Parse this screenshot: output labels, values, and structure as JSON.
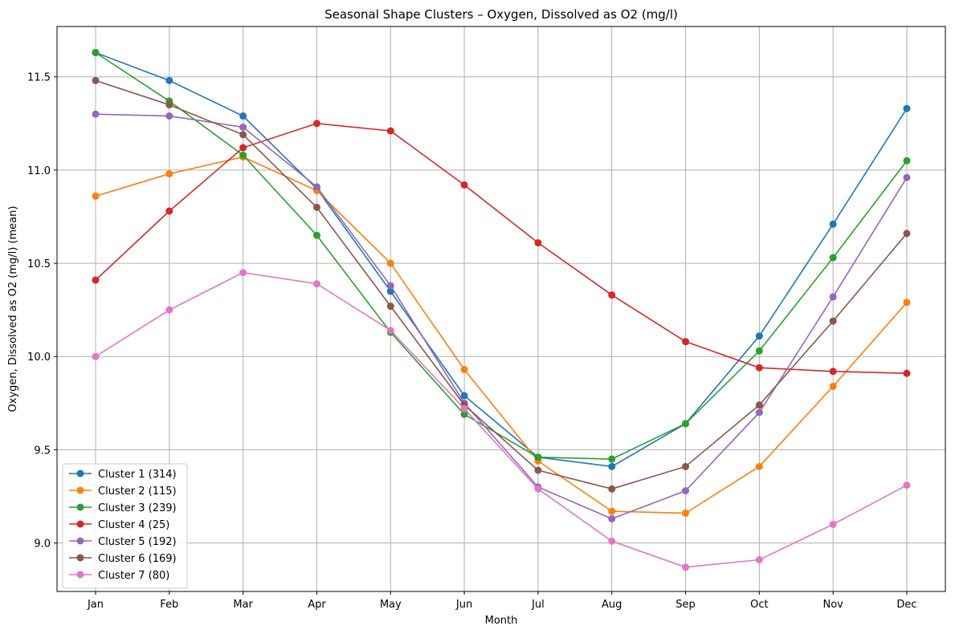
{
  "chart_data": {
    "type": "line",
    "title": "Seasonal Shape Clusters – Oxygen, Dissolved as O2 (mg/l)",
    "xlabel": "Month",
    "ylabel": "Oxygen, Dissolved as O2 (mg/l) (mean)",
    "categories": [
      "Jan",
      "Feb",
      "Mar",
      "Apr",
      "May",
      "Jun",
      "Jul",
      "Aug",
      "Sep",
      "Oct",
      "Nov",
      "Dec"
    ],
    "ylim": [
      8.74,
      11.77
    ],
    "yticks": [
      9.0,
      9.5,
      10.0,
      10.5,
      11.0,
      11.5
    ],
    "ytick_labels": [
      "9.0",
      "9.5",
      "10.0",
      "10.5",
      "11.0",
      "11.5"
    ],
    "grid": true,
    "legend_position": "lower-left",
    "series": [
      {
        "name": "Cluster 1 (314)",
        "color": "#1f77b4",
        "values": [
          11.63,
          11.48,
          11.29,
          10.9,
          10.35,
          9.79,
          9.46,
          9.41,
          9.64,
          10.11,
          10.71,
          11.33
        ]
      },
      {
        "name": "Cluster 2 (115)",
        "color": "#ff7f0e",
        "values": [
          10.86,
          10.98,
          11.07,
          10.89,
          10.5,
          9.93,
          9.44,
          9.17,
          9.16,
          9.41,
          9.84,
          10.29
        ]
      },
      {
        "name": "Cluster 3 (239)",
        "color": "#2ca02c",
        "values": [
          11.63,
          11.37,
          11.08,
          10.65,
          10.13,
          9.69,
          9.46,
          9.45,
          9.64,
          10.03,
          10.53,
          11.05
        ]
      },
      {
        "name": "Cluster 4 (25)",
        "color": "#d62728",
        "values": [
          10.41,
          10.78,
          11.12,
          11.25,
          11.21,
          10.92,
          10.61,
          10.33,
          10.08,
          9.94,
          9.92,
          9.91
        ]
      },
      {
        "name": "Cluster 5 (192)",
        "color": "#9467bd",
        "values": [
          11.3,
          11.29,
          11.23,
          10.91,
          10.38,
          9.75,
          9.3,
          9.13,
          9.28,
          9.7,
          10.32,
          10.96
        ]
      },
      {
        "name": "Cluster 6 (169)",
        "color": "#8c564b",
        "values": [
          11.48,
          11.35,
          11.19,
          10.8,
          10.27,
          9.74,
          9.39,
          9.29,
          9.41,
          9.74,
          10.19,
          10.66
        ]
      },
      {
        "name": "Cluster 7 (80)",
        "color": "#e377c2",
        "values": [
          10.0,
          10.25,
          10.45,
          10.39,
          10.14,
          9.72,
          9.29,
          9.01,
          8.87,
          8.91,
          9.1,
          9.31
        ]
      }
    ]
  }
}
